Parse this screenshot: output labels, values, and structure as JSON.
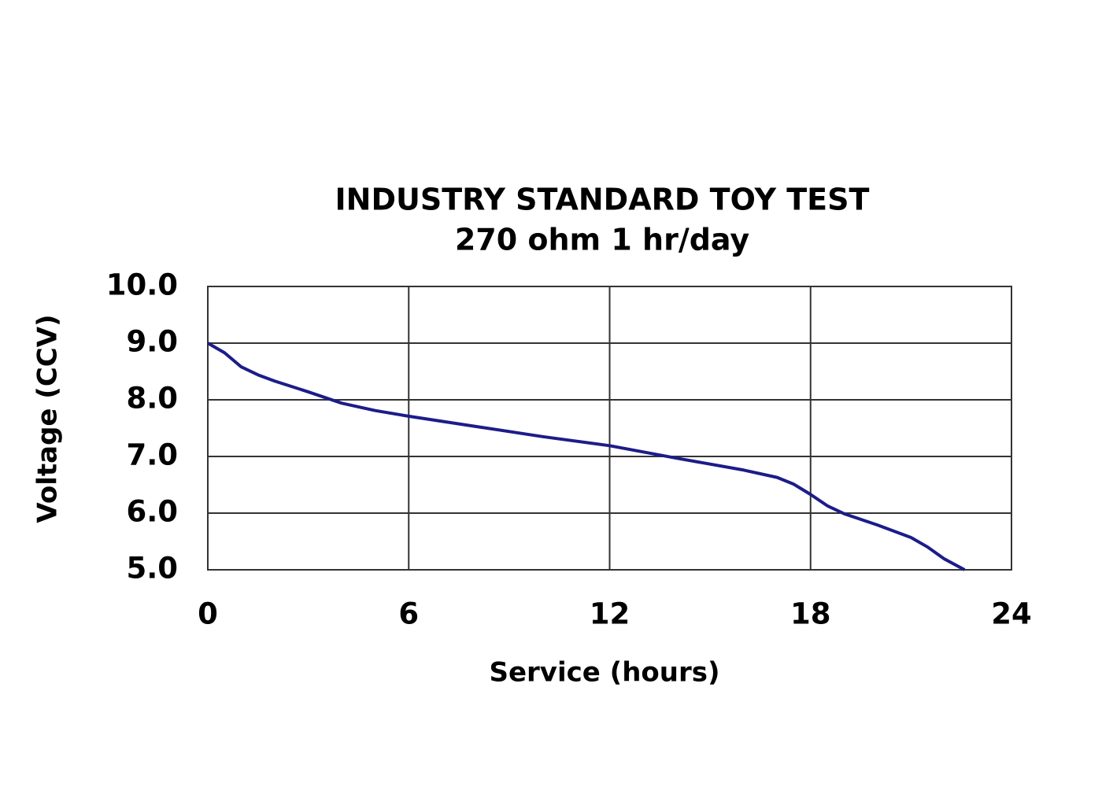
{
  "chart_data": {
    "type": "line",
    "title": "INDUSTRY STANDARD TOY TEST",
    "subtitle": "270 ohm 1 hr/day",
    "x_label": "Service (hours)",
    "y_label": "Voltage (CCV)",
    "x": [
      0,
      0.5,
      1,
      1.5,
      2,
      3,
      4,
      5,
      6,
      8,
      10,
      12,
      14,
      16,
      17,
      17.5,
      18,
      18.5,
      19,
      20,
      21,
      21.5,
      22,
      22.6
    ],
    "series": [
      {
        "color": "#1c1c8a",
        "values": [
          9.0,
          8.83,
          8.58,
          8.44,
          8.33,
          8.14,
          7.94,
          7.81,
          7.71,
          7.53,
          7.35,
          7.19,
          6.97,
          6.76,
          6.63,
          6.51,
          6.33,
          6.13,
          5.99,
          5.79,
          5.57,
          5.4,
          5.19,
          5.0
        ]
      }
    ],
    "xlim": [
      0,
      24
    ],
    "xticks": [
      0,
      6,
      12,
      18,
      24
    ],
    "ylim": [
      5,
      10
    ],
    "yticks": [
      {
        "value": 5,
        "label": "5.0"
      },
      {
        "value": 6,
        "label": "6.0"
      },
      {
        "value": 7,
        "label": "7.0"
      },
      {
        "value": 8,
        "label": "8.0"
      },
      {
        "value": 9,
        "label": "9.0"
      },
      {
        "value": 10,
        "label": "10.0"
      }
    ],
    "grid": true
  }
}
